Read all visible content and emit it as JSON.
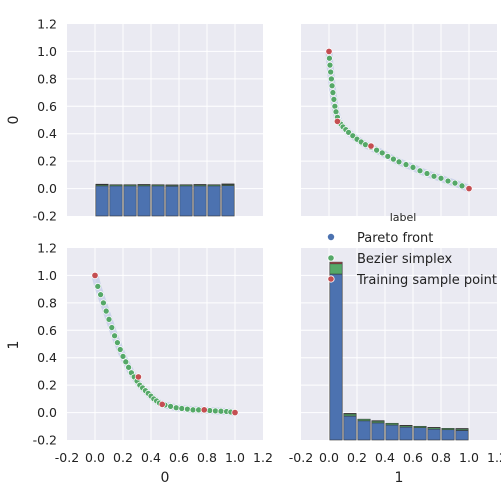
{
  "figure": {
    "colors": {
      "panel_bg": "#EAEAF2",
      "grid": "#FFFFFF",
      "pareto": "#4C72B0",
      "bezier": "#55A868",
      "training": "#C44E52",
      "pareto_band": "#A9B7E0"
    }
  },
  "chart_data": {
    "type": "pairplot",
    "variables": [
      "0",
      "1"
    ],
    "x_ticks": [
      "-0.2",
      "0.0",
      "0.2",
      "0.4",
      "0.6",
      "0.8",
      "1.0",
      "1.2"
    ],
    "y_ticks": [
      "-0.2",
      "0.0",
      "0.2",
      "0.4",
      "0.6",
      "0.8",
      "1.0",
      "1.2"
    ],
    "xlim": [
      -0.2,
      1.2
    ],
    "ylim": [
      -0.2,
      1.2
    ],
    "x_axis_labels": [
      "0",
      "1"
    ],
    "y_axis_labels": [
      "0",
      "1"
    ],
    "grid": true,
    "legend": {
      "title": "label",
      "placement": "right",
      "entries": [
        {
          "name": "Pareto front",
          "color": "#4C72B0"
        },
        {
          "name": "Bezier simplex",
          "color": "#55A868"
        },
        {
          "name": "Training sample point",
          "color": "#C44E52"
        }
      ]
    },
    "hist_00": {
      "type": "stacked-bar",
      "bin_edges": [
        0.0,
        0.1,
        0.2,
        0.3,
        0.4,
        0.5,
        0.6,
        0.7,
        0.8,
        0.9,
        1.0
      ],
      "series": [
        {
          "name": "Pareto front",
          "values": [
            0.02,
            0.02,
            0.02,
            0.02,
            0.02,
            0.018,
            0.02,
            0.02,
            0.02,
            0.022
          ]
        },
        {
          "name": "Bezier simplex",
          "values": [
            0.008,
            0.008,
            0.008,
            0.008,
            0.008,
            0.007,
            0.008,
            0.008,
            0.008,
            0.008
          ]
        },
        {
          "name": "Training sample point",
          "values": [
            0.004,
            0.0,
            0.0,
            0.002,
            0.0,
            0.002,
            0.0,
            0.002,
            0.0,
            0.004
          ]
        }
      ]
    },
    "hist_11": {
      "type": "stacked-bar",
      "bin_edges": [
        0.0,
        0.1,
        0.2,
        0.3,
        0.4,
        0.5,
        0.6,
        0.7,
        0.8,
        0.9,
        1.0
      ],
      "series": [
        {
          "name": "Pareto front",
          "values": [
            1.01,
            -0.025,
            -0.06,
            -0.075,
            -0.09,
            -0.105,
            -0.11,
            -0.12,
            -0.125,
            -0.13
          ]
        },
        {
          "name": "Bezier simplex",
          "values": [
            0.075,
            0.015,
            0.012,
            0.012,
            0.012,
            0.01,
            0.01,
            0.01,
            0.01,
            0.01
          ]
        },
        {
          "name": "Training sample point",
          "values": [
            0.012,
            0.004,
            0.0,
            0.004,
            0.0,
            0.002,
            0.0,
            0.002,
            0.0,
            0.004
          ]
        }
      ]
    },
    "scatter": {
      "bezier_front": [
        [
          0.0,
          1.0
        ],
        [
          0.003,
          0.95
        ],
        [
          0.007,
          0.9
        ],
        [
          0.012,
          0.85
        ],
        [
          0.017,
          0.8
        ],
        [
          0.022,
          0.75
        ],
        [
          0.028,
          0.7
        ],
        [
          0.035,
          0.65
        ],
        [
          0.042,
          0.6
        ],
        [
          0.05,
          0.56
        ],
        [
          0.06,
          0.52
        ],
        [
          0.07,
          0.49
        ],
        [
          0.085,
          0.47
        ],
        [
          0.1,
          0.45
        ],
        [
          0.12,
          0.43
        ],
        [
          0.14,
          0.41
        ],
        [
          0.17,
          0.385
        ],
        [
          0.2,
          0.36
        ],
        [
          0.23,
          0.34
        ],
        [
          0.26,
          0.32
        ],
        [
          0.3,
          0.3
        ],
        [
          0.34,
          0.28
        ],
        [
          0.38,
          0.26
        ],
        [
          0.42,
          0.235
        ],
        [
          0.46,
          0.215
        ],
        [
          0.5,
          0.195
        ],
        [
          0.55,
          0.175
        ],
        [
          0.6,
          0.155
        ],
        [
          0.65,
          0.13
        ],
        [
          0.7,
          0.11
        ],
        [
          0.75,
          0.09
        ],
        [
          0.8,
          0.075
        ],
        [
          0.85,
          0.055
        ],
        [
          0.9,
          0.04
        ],
        [
          0.95,
          0.02
        ],
        [
          1.0,
          0.0
        ]
      ],
      "training_front": [
        [
          0.0,
          1.0
        ],
        [
          0.06,
          0.49
        ],
        [
          0.3,
          0.31
        ],
        [
          1.0,
          0.0
        ]
      ],
      "bezier_lower": [
        [
          0.0,
          1.0
        ],
        [
          0.02,
          0.92
        ],
        [
          0.04,
          0.86
        ],
        [
          0.06,
          0.8
        ],
        [
          0.08,
          0.74
        ],
        [
          0.1,
          0.68
        ],
        [
          0.12,
          0.62
        ],
        [
          0.14,
          0.56
        ],
        [
          0.16,
          0.51
        ],
        [
          0.18,
          0.46
        ],
        [
          0.2,
          0.41
        ],
        [
          0.22,
          0.37
        ],
        [
          0.24,
          0.33
        ],
        [
          0.26,
          0.29
        ],
        [
          0.28,
          0.26
        ],
        [
          0.3,
          0.23
        ],
        [
          0.32,
          0.2
        ],
        [
          0.34,
          0.18
        ],
        [
          0.36,
          0.16
        ],
        [
          0.38,
          0.14
        ],
        [
          0.4,
          0.12
        ],
        [
          0.42,
          0.1
        ],
        [
          0.44,
          0.085
        ],
        [
          0.46,
          0.07
        ],
        [
          0.5,
          0.055
        ],
        [
          0.54,
          0.045
        ],
        [
          0.58,
          0.035
        ],
        [
          0.62,
          0.03
        ],
        [
          0.66,
          0.025
        ],
        [
          0.7,
          0.02
        ],
        [
          0.74,
          0.02
        ],
        [
          0.78,
          0.018
        ],
        [
          0.82,
          0.015
        ],
        [
          0.86,
          0.012
        ],
        [
          0.9,
          0.01
        ],
        [
          0.94,
          0.008
        ],
        [
          0.97,
          0.004
        ],
        [
          1.0,
          0.0
        ]
      ],
      "training_lower": [
        [
          0.0,
          1.0
        ],
        [
          0.31,
          0.26
        ],
        [
          0.48,
          0.06
        ],
        [
          0.78,
          0.02
        ],
        [
          1.0,
          0.0
        ]
      ]
    }
  }
}
